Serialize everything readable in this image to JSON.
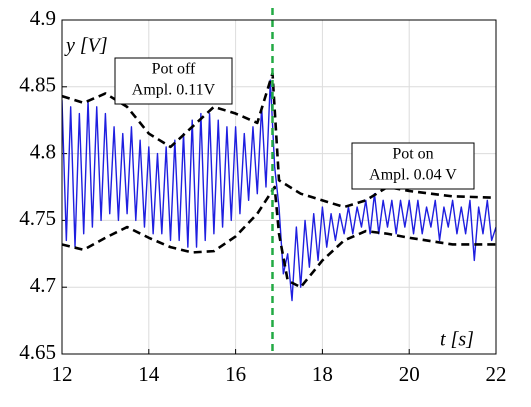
{
  "chart_data": {
    "type": "line",
    "xlim": [
      12,
      22
    ],
    "xticks": [
      12,
      14,
      16,
      18,
      20,
      22
    ],
    "ylim": [
      4.65,
      4.9
    ],
    "yticks": [
      4.65,
      4.7,
      4.75,
      4.8,
      4.85,
      4.9
    ],
    "grid": true,
    "xlabel": "t [s]",
    "ylabel": "y [V]",
    "vline": {
      "x": 16.85,
      "color": "#22aa44"
    },
    "annotations": [
      {
        "lines": [
          "Pot off",
          "Ampl. 0.11V"
        ]
      },
      {
        "lines": [
          "Pot on",
          "Ampl. 0.04 V"
        ]
      }
    ],
    "series": [
      {
        "color": "#1f1fe0",
        "style": "solid",
        "x": [
          12.0,
          12.1,
          12.2,
          12.3,
          12.4,
          12.5,
          12.6,
          12.7,
          12.8,
          12.9,
          13.0,
          13.1,
          13.2,
          13.3,
          13.4,
          13.5,
          13.6,
          13.7,
          13.8,
          13.9,
          14.0,
          14.1,
          14.2,
          14.3,
          14.4,
          14.5,
          14.6,
          14.7,
          14.8,
          14.9,
          15.0,
          15.1,
          15.2,
          15.3,
          15.4,
          15.5,
          15.6,
          15.7,
          15.8,
          15.9,
          16.0,
          16.1,
          16.2,
          16.3,
          16.4,
          16.5,
          16.6,
          16.7,
          16.8,
          16.9,
          17.0,
          17.1,
          17.2,
          17.3,
          17.4,
          17.5,
          17.6,
          17.7,
          17.8,
          17.9,
          18.0,
          18.1,
          18.2,
          18.3,
          18.4,
          18.5,
          18.6,
          18.7,
          18.8,
          18.9,
          19.0,
          19.1,
          19.2,
          19.3,
          19.4,
          19.5,
          19.6,
          19.7,
          19.8,
          19.9,
          20.0,
          20.1,
          20.2,
          20.3,
          20.4,
          20.5,
          20.6,
          20.7,
          20.8,
          20.9,
          21.0,
          21.1,
          21.2,
          21.3,
          21.4,
          21.5,
          21.6,
          21.7,
          21.8,
          21.9,
          22.0
        ],
        "values": [
          4.84,
          4.735,
          4.835,
          4.73,
          4.83,
          4.74,
          4.84,
          4.745,
          4.835,
          4.75,
          4.83,
          4.755,
          4.82,
          4.75,
          4.815,
          4.755,
          4.82,
          4.75,
          4.81,
          4.745,
          4.805,
          4.74,
          4.8,
          4.74,
          4.805,
          4.735,
          4.81,
          4.735,
          4.815,
          4.73,
          4.825,
          4.73,
          4.83,
          4.735,
          4.83,
          4.74,
          4.825,
          4.745,
          4.82,
          4.75,
          4.82,
          4.755,
          4.815,
          4.765,
          4.82,
          4.77,
          4.835,
          4.775,
          4.855,
          4.79,
          4.76,
          4.71,
          4.725,
          4.69,
          4.745,
          4.7,
          4.75,
          4.715,
          4.755,
          4.72,
          4.76,
          4.73,
          4.755,
          4.735,
          4.755,
          4.74,
          4.76,
          4.74,
          4.76,
          4.745,
          4.765,
          4.74,
          4.77,
          4.74,
          4.765,
          4.745,
          4.765,
          4.74,
          4.765,
          4.745,
          4.765,
          4.74,
          4.765,
          4.74,
          4.76,
          4.745,
          4.765,
          4.735,
          4.76,
          4.745,
          4.765,
          4.74,
          4.76,
          4.74,
          4.765,
          4.72,
          4.76,
          4.74,
          4.765,
          4.735,
          4.745
        ]
      },
      {
        "color": "#000000",
        "style": "dashed",
        "x": [
          12,
          12.5,
          13,
          13.5,
          14,
          14.5,
          15,
          15.5,
          16,
          16.5,
          16.85,
          17,
          17.5,
          18,
          18.5,
          19,
          19.5,
          20,
          21,
          22
        ],
        "values": [
          4.843,
          4.838,
          4.845,
          4.835,
          4.815,
          4.805,
          4.82,
          4.835,
          4.83,
          4.823,
          4.86,
          4.78,
          4.77,
          4.765,
          4.76,
          4.765,
          4.775,
          4.772,
          4.768,
          4.767
        ]
      },
      {
        "color": "#000000",
        "style": "dashed",
        "x": [
          12,
          12.5,
          13,
          13.5,
          14,
          14.5,
          15,
          15.5,
          16,
          16.5,
          16.9,
          17,
          17.2,
          17.5,
          18,
          18.5,
          19,
          19.5,
          20,
          21,
          22
        ],
        "values": [
          4.732,
          4.728,
          4.737,
          4.745,
          4.737,
          4.73,
          4.726,
          4.727,
          4.738,
          4.755,
          4.775,
          4.74,
          4.705,
          4.7,
          4.72,
          4.735,
          4.742,
          4.74,
          4.737,
          4.732,
          4.732
        ]
      }
    ]
  }
}
